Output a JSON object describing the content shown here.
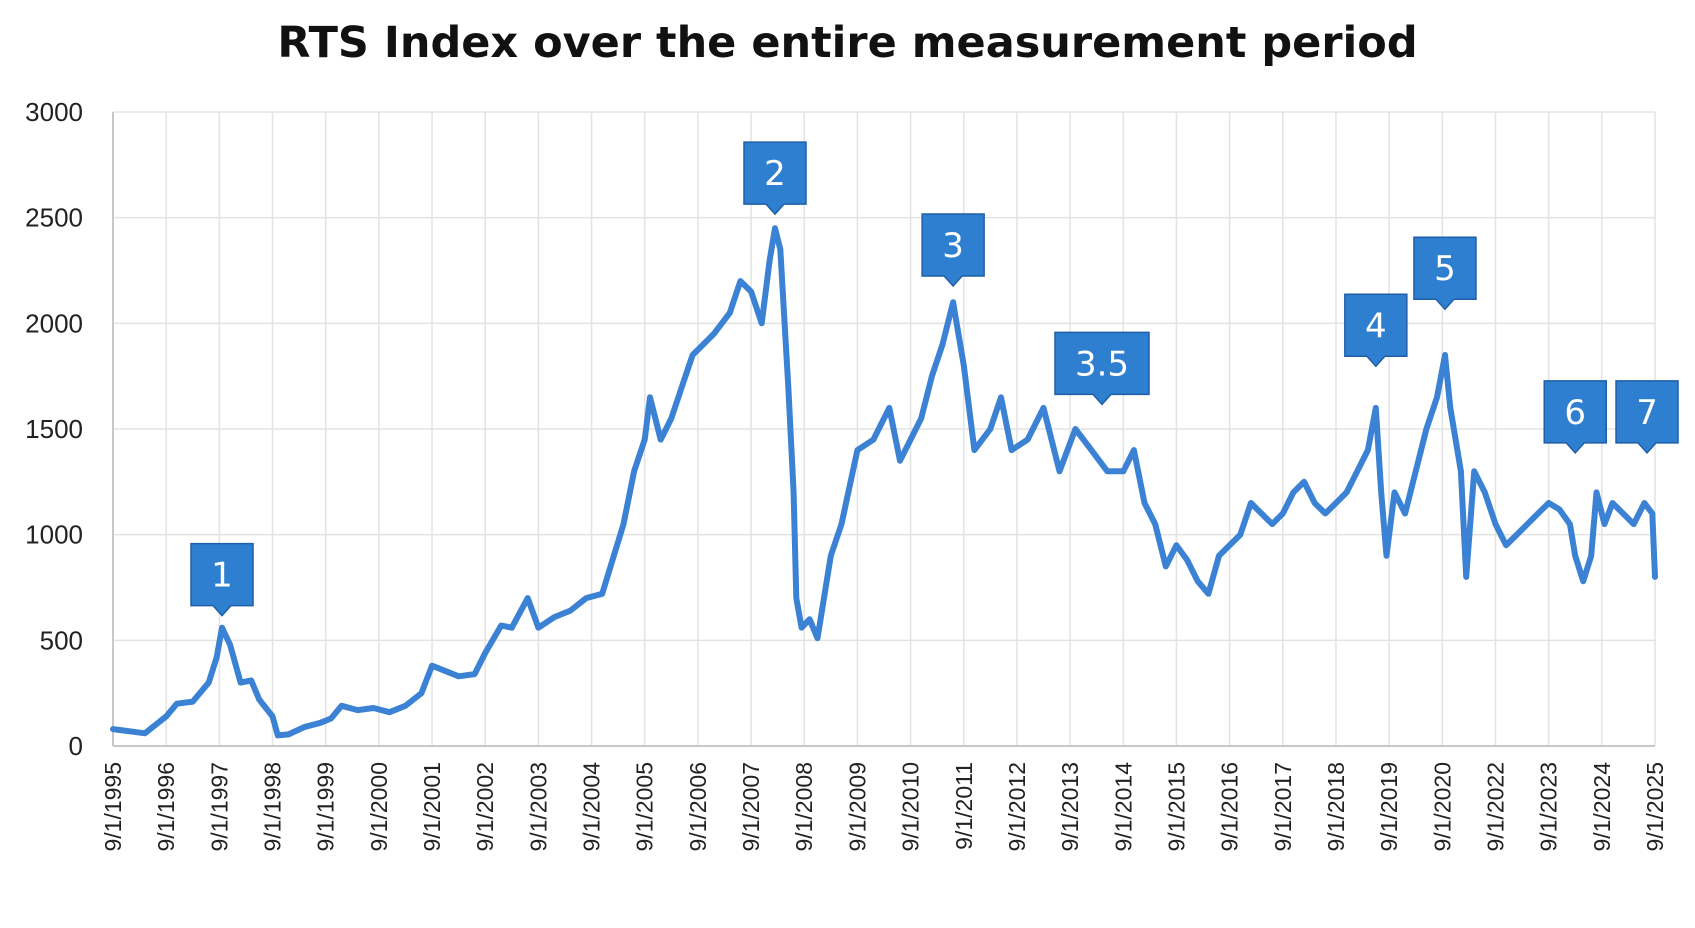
{
  "chart_data": {
    "type": "line",
    "title": "RTS Index over the entire measurement period",
    "xlabel": "",
    "ylabel": "",
    "ylim": [
      0,
      3000
    ],
    "yticks": [
      "0",
      "500",
      "1000",
      "1500",
      "2000",
      "2500",
      "3000"
    ],
    "grid": true,
    "line_color": "#3b82d4",
    "callout_color": "#2f7fd1",
    "xtick_labels": [
      "9/1/1995",
      "9/1/1996",
      "9/1/1997",
      "9/1/1998",
      "9/1/1999",
      "9/1/2000",
      "9/1/2001",
      "9/1/2002",
      "9/1/2003",
      "9/1/2004",
      "9/1/2005",
      "9/1/2006",
      "9/1/2007",
      "9/1/2008",
      "9/1/2009",
      "9/1/2010",
      "9/1/2011",
      "9/1/2012",
      "9/1/2013",
      "9/1/2014",
      "9/1/2015",
      "9/1/2016",
      "9/1/2017",
      "9/1/2018",
      "9/1/2019",
      "9/1/2020",
      "9/1/2022",
      "9/1/2023",
      "9/1/2024",
      "9/1/2025"
    ],
    "series": [
      {
        "values": [
          [
            0,
            80
          ],
          [
            0.3,
            70
          ],
          [
            0.6,
            60
          ],
          [
            1.0,
            140
          ],
          [
            1.2,
            200
          ],
          [
            1.5,
            210
          ],
          [
            1.8,
            300
          ],
          [
            1.95,
            420
          ],
          [
            2.05,
            560
          ],
          [
            2.2,
            480
          ],
          [
            2.4,
            300
          ],
          [
            2.6,
            310
          ],
          [
            2.75,
            220
          ],
          [
            3.0,
            140
          ],
          [
            3.1,
            50
          ],
          [
            3.3,
            55
          ],
          [
            3.6,
            90
          ],
          [
            3.9,
            110
          ],
          [
            4.1,
            130
          ],
          [
            4.3,
            190
          ],
          [
            4.6,
            170
          ],
          [
            4.9,
            180
          ],
          [
            5.2,
            160
          ],
          [
            5.5,
            190
          ],
          [
            5.8,
            250
          ],
          [
            6.0,
            380
          ],
          [
            6.2,
            360
          ],
          [
            6.5,
            330
          ],
          [
            6.8,
            340
          ],
          [
            7.0,
            440
          ],
          [
            7.3,
            570
          ],
          [
            7.5,
            560
          ],
          [
            7.8,
            700
          ],
          [
            8.0,
            560
          ],
          [
            8.3,
            610
          ],
          [
            8.6,
            640
          ],
          [
            8.9,
            700
          ],
          [
            9.2,
            720
          ],
          [
            9.6,
            1050
          ],
          [
            9.8,
            1300
          ],
          [
            10.0,
            1450
          ],
          [
            10.1,
            1650
          ],
          [
            10.3,
            1450
          ],
          [
            10.5,
            1550
          ],
          [
            10.7,
            1700
          ],
          [
            10.9,
            1850
          ],
          [
            11.1,
            1900
          ],
          [
            11.3,
            1950
          ],
          [
            11.6,
            2050
          ],
          [
            11.8,
            2200
          ],
          [
            12.0,
            2150
          ],
          [
            12.2,
            2000
          ],
          [
            12.35,
            2300
          ],
          [
            12.45,
            2450
          ],
          [
            12.55,
            2350
          ],
          [
            12.7,
            1700
          ],
          [
            12.8,
            1200
          ],
          [
            12.85,
            700
          ],
          [
            12.95,
            560
          ],
          [
            13.1,
            600
          ],
          [
            13.25,
            510
          ],
          [
            13.5,
            900
          ],
          [
            13.7,
            1050
          ],
          [
            14.0,
            1400
          ],
          [
            14.3,
            1450
          ],
          [
            14.6,
            1600
          ],
          [
            14.8,
            1350
          ],
          [
            15.2,
            1550
          ],
          [
            15.4,
            1750
          ],
          [
            15.6,
            1900
          ],
          [
            15.8,
            2100
          ],
          [
            16.0,
            1800
          ],
          [
            16.2,
            1400
          ],
          [
            16.5,
            1500
          ],
          [
            16.7,
            1650
          ],
          [
            16.9,
            1400
          ],
          [
            17.2,
            1450
          ],
          [
            17.5,
            1600
          ],
          [
            17.8,
            1300
          ],
          [
            18.1,
            1500
          ],
          [
            18.4,
            1400
          ],
          [
            18.7,
            1300
          ],
          [
            19.0,
            1300
          ],
          [
            19.2,
            1400
          ],
          [
            19.4,
            1150
          ],
          [
            19.6,
            1050
          ],
          [
            19.8,
            850
          ],
          [
            20.0,
            950
          ],
          [
            20.2,
            880
          ],
          [
            20.4,
            780
          ],
          [
            20.6,
            720
          ],
          [
            20.8,
            900
          ],
          [
            21.0,
            950
          ],
          [
            21.2,
            1000
          ],
          [
            21.4,
            1150
          ],
          [
            21.6,
            1100
          ],
          [
            21.8,
            1050
          ],
          [
            22.0,
            1100
          ],
          [
            22.2,
            1200
          ],
          [
            22.4,
            1250
          ],
          [
            22.6,
            1150
          ],
          [
            22.8,
            1100
          ],
          [
            23.0,
            1150
          ],
          [
            23.2,
            1200
          ],
          [
            23.4,
            1300
          ],
          [
            23.6,
            1400
          ],
          [
            23.75,
            1600
          ],
          [
            23.85,
            1200
          ],
          [
            23.95,
            900
          ],
          [
            24.1,
            1200
          ],
          [
            24.3,
            1100
          ],
          [
            24.5,
            1300
          ],
          [
            24.7,
            1500
          ],
          [
            24.9,
            1650
          ],
          [
            25.05,
            1850
          ],
          [
            25.15,
            1600
          ],
          [
            25.35,
            1300
          ],
          [
            25.45,
            800
          ],
          [
            25.6,
            1300
          ],
          [
            25.8,
            1200
          ],
          [
            26.0,
            1050
          ],
          [
            26.2,
            950
          ],
          [
            26.4,
            1000
          ],
          [
            26.6,
            1050
          ],
          [
            26.8,
            1100
          ],
          [
            27.0,
            1150
          ],
          [
            27.2,
            1120
          ],
          [
            27.4,
            1050
          ],
          [
            27.5,
            900
          ],
          [
            27.65,
            780
          ],
          [
            27.8,
            900
          ],
          [
            27.9,
            1200
          ],
          [
            28.05,
            1050
          ],
          [
            28.2,
            1150
          ],
          [
            28.4,
            1100
          ],
          [
            28.6,
            1050
          ],
          [
            28.8,
            1150
          ],
          [
            28.95,
            1100
          ],
          [
            29.0,
            800
          ]
        ]
      }
    ],
    "callouts": [
      {
        "label": "1",
        "x": 2.05,
        "y": 560
      },
      {
        "label": "2",
        "x": 12.45,
        "y": 2460
      },
      {
        "label": "3",
        "x": 15.8,
        "y": 2120
      },
      {
        "label": "3.5",
        "x": 18.6,
        "y": 1560
      },
      {
        "label": "4",
        "x": 23.75,
        "y": 1740
      },
      {
        "label": "5",
        "x": 25.05,
        "y": 2010
      },
      {
        "label": "6",
        "x": 27.5,
        "y": 1330
      },
      {
        "label": "7",
        "x": 28.85,
        "y": 1330
      }
    ]
  }
}
